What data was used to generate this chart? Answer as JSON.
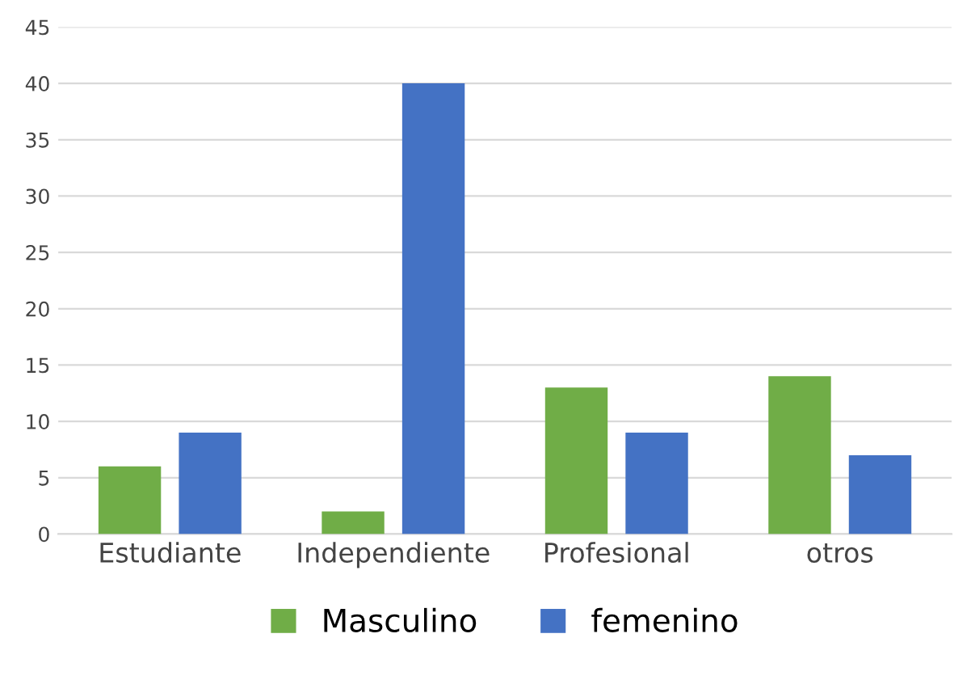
{
  "chart_data": {
    "type": "bar",
    "categories": [
      "Estudiante",
      "Independiente",
      "Profesional",
      "otros"
    ],
    "series": [
      {
        "name": "Masculino",
        "color": "#70ad47",
        "values": [
          6,
          2,
          13,
          14
        ]
      },
      {
        "name": "femenino",
        "color": "#4472c4",
        "values": [
          9,
          40,
          9,
          7
        ]
      }
    ],
    "ylim": [
      0,
      45
    ],
    "yticks": [
      0,
      5,
      10,
      15,
      20,
      25,
      30,
      35,
      40,
      45
    ],
    "grid": "y",
    "legend": "bottom"
  }
}
